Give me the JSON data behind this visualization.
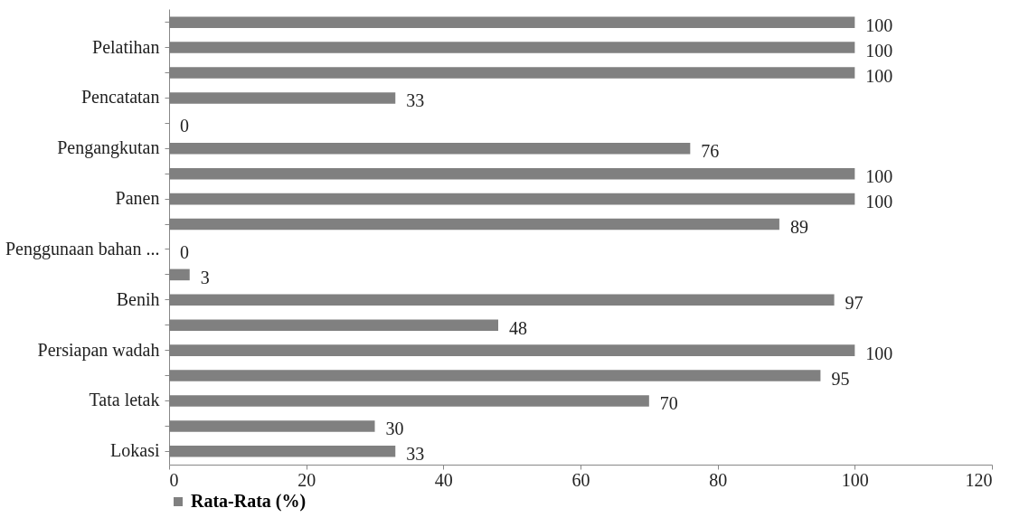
{
  "chart_data": {
    "type": "bar",
    "orientation": "horizontal",
    "categories": [
      null,
      "Pelatihan",
      null,
      "Pencatatan",
      null,
      "Pengangkutan",
      null,
      "Panen",
      null,
      "Penggunaan bahan ...",
      null,
      "Benih",
      null,
      "Persiapan wadah",
      null,
      "Tata letak",
      null,
      "Lokasi"
    ],
    "series": [
      {
        "name": "Rata-Rata (%)",
        "color": "#808080",
        "values": [
          100,
          100,
          100,
          33,
          0,
          76,
          100,
          100,
          89,
          0,
          3,
          97,
          48,
          100,
          95,
          70,
          30,
          33
        ]
      }
    ],
    "xlim": [
      0,
      120
    ],
    "xticks": [
      0,
      20,
      40,
      60,
      80,
      100,
      120
    ],
    "data_labels": true,
    "grid": false,
    "legend": "bottom left"
  }
}
